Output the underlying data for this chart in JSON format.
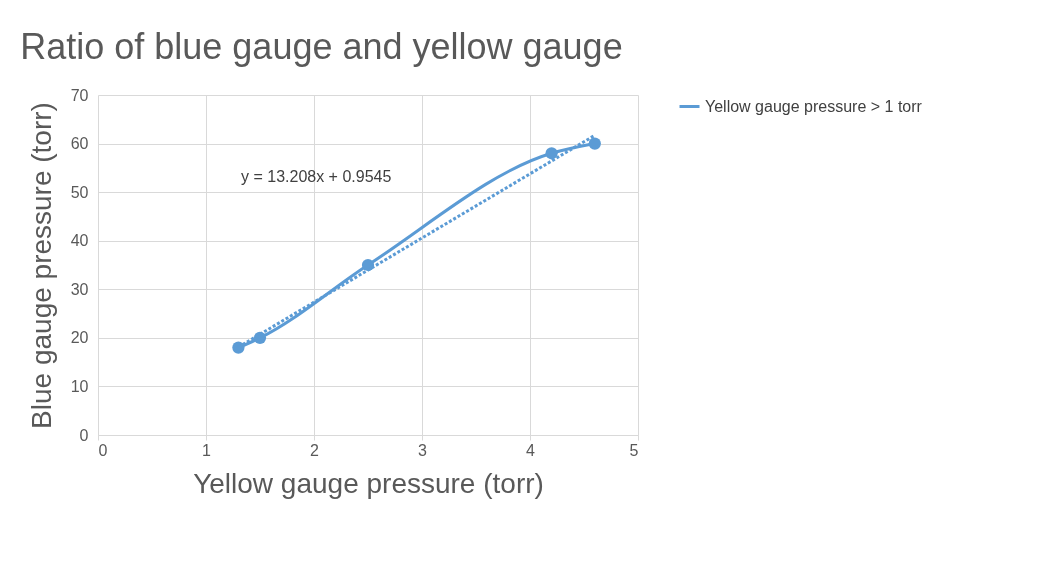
{
  "chart_data": {
    "type": "line",
    "title": "Ratio of blue gauge and yellow gauge",
    "xlabel": "Yellow gauge pressure (torr)",
    "ylabel": "Blue gauge pressure (torr)",
    "xlim": [
      0,
      5
    ],
    "xticks": [
      0,
      1,
      2,
      3,
      4,
      5
    ],
    "ylim": [
      0,
      70
    ],
    "yticks": [
      0,
      10,
      20,
      30,
      40,
      50,
      60,
      70
    ],
    "grid": true,
    "legend": "right",
    "annotations": [
      "y = 13.208x + 0.9545"
    ],
    "series": [
      {
        "name": "Yellow gauge pressure > 1 torr",
        "color": "#5b9bd5",
        "marker": "circle",
        "line_style": "solid",
        "x": [
          1.3,
          1.5,
          2.5,
          4.2,
          4.6
        ],
        "values": [
          18,
          20,
          35,
          58,
          60
        ]
      },
      {
        "type": "line",
        "color": "#5b9bd5",
        "line_style": "dotted",
        "x": [
          1.3,
          4.6
        ],
        "values": [
          18.1,
          61.7
        ]
      }
    ]
  }
}
